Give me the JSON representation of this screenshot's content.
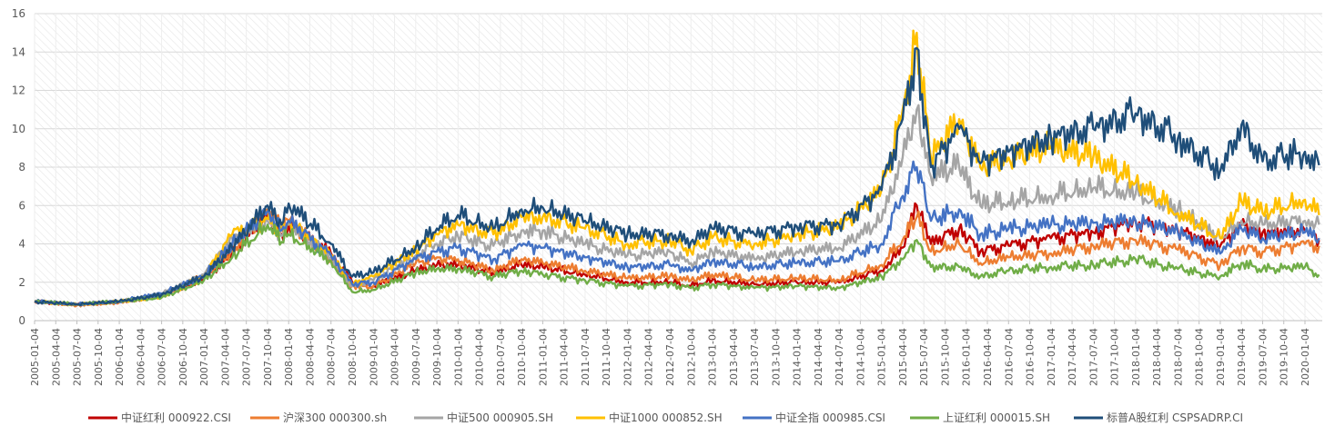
{
  "chart_data": {
    "type": "line",
    "title": "",
    "xlabel": "",
    "ylabel": "",
    "ylim": [
      0,
      16
    ],
    "yticks": [
      0,
      2,
      4,
      6,
      8,
      10,
      12,
      14,
      16
    ],
    "grid": true,
    "legend": "bottom",
    "x_tick_labels": [
      "2005-01-04",
      "2005-04-04",
      "2005-07-04",
      "2005-10-04",
      "2006-01-04",
      "2006-04-04",
      "2006-07-04",
      "2006-10-04",
      "2007-01-04",
      "2007-04-04",
      "2007-07-04",
      "2007-10-04",
      "2008-01-04",
      "2008-04-04",
      "2008-07-04",
      "2008-10-04",
      "2009-01-04",
      "2009-04-04",
      "2009-07-04",
      "2009-10-04",
      "2010-01-04",
      "2010-04-04",
      "2010-07-04",
      "2010-10-04",
      "2011-01-04",
      "2011-04-04",
      "2011-07-04",
      "2011-10-04",
      "2012-01-04",
      "2012-04-04",
      "2012-07-04",
      "2012-10-04",
      "2013-01-04",
      "2013-04-04",
      "2013-07-04",
      "2013-10-04",
      "2014-01-04",
      "2014-04-04",
      "2014-07-04",
      "2014-10-04",
      "2015-01-04",
      "2015-04-04",
      "2015-07-04",
      "2015-10-04",
      "2016-01-04",
      "2016-04-04",
      "2016-07-04",
      "2016-10-04",
      "2017-01-04",
      "2017-04-04",
      "2017-07-04",
      "2017-10-04",
      "2018-01-04",
      "2018-04-04",
      "2018-07-04",
      "2018-10-04",
      "2019-01-04",
      "2019-04-04",
      "2019-07-04",
      "2019-10-04",
      "2020-01-04"
    ],
    "x_sample_dates": [
      "2005-01",
      "2005-07",
      "2006-01",
      "2006-07",
      "2007-01",
      "2007-05",
      "2007-10",
      "2007-12",
      "2008-01",
      "2008-07",
      "2008-10",
      "2009-01",
      "2009-07",
      "2009-10",
      "2010-01",
      "2010-06",
      "2010-10",
      "2011-01",
      "2011-07",
      "2012-01",
      "2012-07",
      "2012-10",
      "2013-01",
      "2013-07",
      "2014-01",
      "2014-07",
      "2015-01",
      "2015-04",
      "2015-06",
      "2015-08",
      "2015-12",
      "2016-03",
      "2016-07",
      "2017-01",
      "2017-07",
      "2018-01",
      "2018-07",
      "2019-01",
      "2019-04",
      "2019-07",
      "2020-01",
      "2020-03"
    ],
    "series": [
      {
        "name": "中证红利 000922.CSI",
        "color": "#C00000",
        "values": [
          1.0,
          0.85,
          1.0,
          1.3,
          2.2,
          3.5,
          5.5,
          4.5,
          5.0,
          3.5,
          2.0,
          1.8,
          2.6,
          2.9,
          2.9,
          2.5,
          2.9,
          2.8,
          2.4,
          2.0,
          2.0,
          1.8,
          2.1,
          1.9,
          2.0,
          2.0,
          2.6,
          3.8,
          6.0,
          4.0,
          4.8,
          3.6,
          3.9,
          4.3,
          4.6,
          5.2,
          4.7,
          3.9,
          5.0,
          4.6,
          4.7,
          4.2
        ]
      },
      {
        "name": "沪深300 000300.sh",
        "color": "#ED7D31",
        "values": [
          1.0,
          0.8,
          0.95,
          1.3,
          2.3,
          3.6,
          5.8,
          4.8,
          5.2,
          3.2,
          1.8,
          1.8,
          3.0,
          3.3,
          3.2,
          2.6,
          3.2,
          3.0,
          2.6,
          2.2,
          2.3,
          2.1,
          2.4,
          2.1,
          2.2,
          2.1,
          2.9,
          4.2,
          5.4,
          3.6,
          4.0,
          3.0,
          3.3,
          3.5,
          3.9,
          4.2,
          3.7,
          2.9,
          3.8,
          3.6,
          4.0,
          3.9
        ]
      },
      {
        "name": "中证500 000905.SH",
        "color": "#A5A5A5",
        "values": [
          1.0,
          0.85,
          1.0,
          1.4,
          2.4,
          4.3,
          5.2,
          4.4,
          5.0,
          3.3,
          1.8,
          2.1,
          3.4,
          4.0,
          4.4,
          3.9,
          4.7,
          4.7,
          4.0,
          3.4,
          3.6,
          3.0,
          3.6,
          3.2,
          3.6,
          3.8,
          5.2,
          8.5,
          11.0,
          7.5,
          8.0,
          6.0,
          6.2,
          6.5,
          6.9,
          6.6,
          5.8,
          4.3,
          5.2,
          5.0,
          5.2,
          5.0
        ]
      },
      {
        "name": "中证1000 000852.SH",
        "color": "#FFC000",
        "values": [
          1.0,
          0.85,
          1.0,
          1.3,
          2.3,
          4.5,
          5.3,
          4.7,
          5.2,
          3.4,
          1.9,
          2.3,
          3.7,
          4.5,
          5.0,
          4.5,
          5.4,
          5.4,
          4.8,
          4.0,
          4.2,
          3.6,
          4.3,
          4.0,
          4.5,
          4.9,
          6.8,
          11.0,
          15.0,
          8.5,
          10.5,
          8.0,
          8.5,
          9.0,
          8.5,
          7.2,
          5.6,
          4.3,
          6.2,
          5.6,
          6.3,
          5.5
        ]
      },
      {
        "name": "中证全指 000985.CSI",
        "color": "#4472C4",
        "values": [
          1.0,
          0.85,
          1.0,
          1.4,
          2.3,
          4.0,
          5.7,
          4.7,
          5.2,
          3.4,
          1.9,
          2.0,
          3.2,
          3.6,
          3.8,
          3.2,
          3.9,
          3.8,
          3.3,
          2.8,
          2.9,
          2.6,
          3.1,
          2.8,
          3.0,
          3.1,
          4.0,
          6.5,
          8.0,
          5.2,
          5.8,
          4.5,
          4.8,
          5.0,
          5.1,
          5.2,
          4.6,
          3.5,
          4.8,
          4.3,
          4.6,
          4.3
        ]
      },
      {
        "name": "上证红利 000015.SH",
        "color": "#70AD47",
        "values": [
          1.0,
          0.85,
          1.0,
          1.2,
          2.1,
          3.3,
          5.0,
          4.1,
          4.5,
          3.1,
          1.5,
          1.6,
          2.5,
          2.7,
          2.7,
          2.3,
          2.6,
          2.4,
          2.1,
          1.8,
          1.9,
          1.7,
          1.9,
          1.7,
          1.8,
          1.7,
          2.3,
          3.2,
          4.2,
          2.8,
          2.8,
          2.3,
          2.6,
          2.8,
          2.9,
          3.2,
          2.7,
          2.3,
          3.0,
          2.7,
          2.8,
          2.4
        ]
      },
      {
        "name": "标普A股红利 CSPSADRP.CI",
        "color": "#1F4E79",
        "values": [
          1.0,
          0.85,
          1.0,
          1.35,
          2.3,
          3.8,
          6.0,
          5.0,
          6.1,
          4.0,
          2.3,
          2.5,
          3.8,
          4.8,
          5.5,
          4.8,
          5.8,
          5.9,
          5.2,
          4.5,
          4.5,
          4.1,
          4.8,
          4.5,
          4.9,
          5.0,
          6.8,
          10.5,
          14.2,
          8.0,
          10.0,
          8.2,
          8.8,
          9.6,
          10.0,
          10.8,
          9.5,
          7.8,
          10.2,
          8.3,
          8.8,
          8.1
        ]
      }
    ]
  }
}
